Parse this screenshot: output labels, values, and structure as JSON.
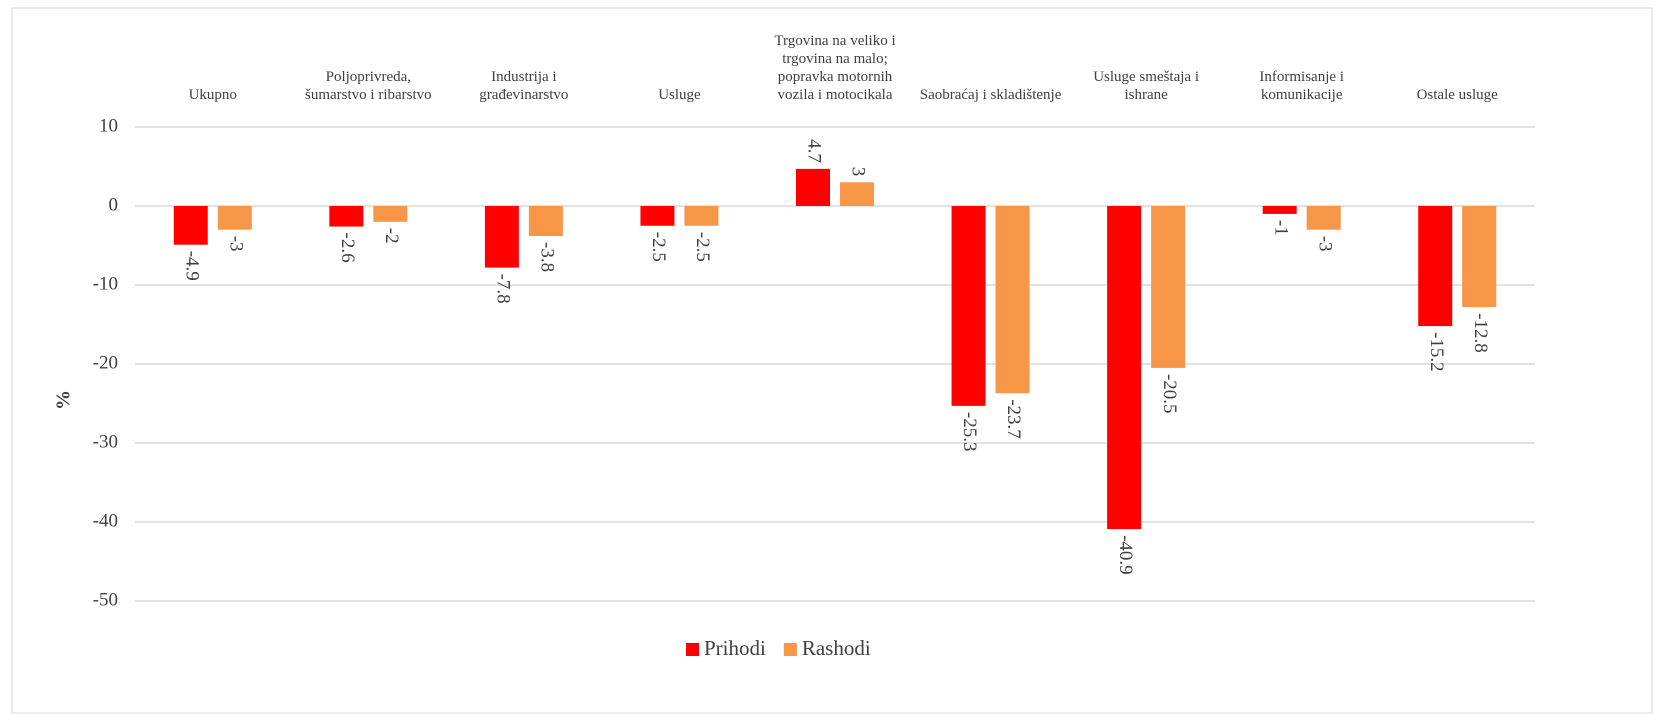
{
  "chart_data": {
    "type": "bar",
    "categories": [
      "Ukupno",
      "Poljoprivreda, šumarstvo i ribarstvo",
      "Industrija i građevinarstvo",
      "Usluge",
      "Trgovina na veliko i trgovina na malo; popravka motornih vozila i motocikala",
      "Saobraćaj i skladištenje",
      "Usluge smeštaja i ishrane",
      "Informisanje i komunikacije",
      "Ostale usluge"
    ],
    "series": [
      {
        "name": "Prihodi",
        "color": "#ff0000",
        "values": [
          -4.9,
          -2.6,
          -7.8,
          -2.5,
          4.7,
          -25.3,
          -40.9,
          -1,
          -15.2
        ]
      },
      {
        "name": "Rashodi",
        "color": "#f79646",
        "values": [
          -3,
          -2,
          -3.8,
          -2.5,
          3,
          -23.7,
          -20.5,
          -3,
          -12.8
        ]
      }
    ],
    "y_label": "%",
    "ylim": [
      -50,
      10
    ],
    "yticks": [
      10,
      0,
      -10,
      -20,
      -30,
      -40,
      -50
    ],
    "grid": true,
    "legend": "bottom"
  }
}
